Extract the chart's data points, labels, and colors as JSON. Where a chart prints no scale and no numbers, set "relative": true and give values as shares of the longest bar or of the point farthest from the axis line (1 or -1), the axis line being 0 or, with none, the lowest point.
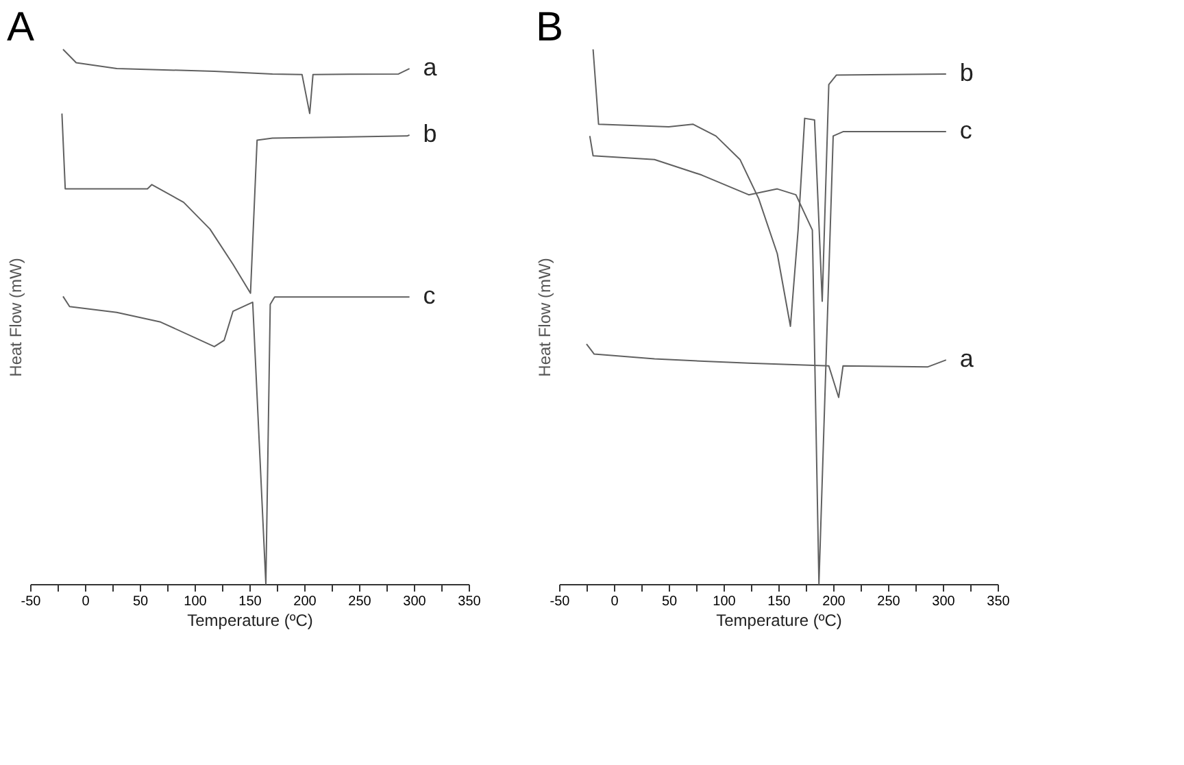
{
  "chart_data": [
    {
      "type": "line",
      "title": "A",
      "xlabel": "Temperature (ºC)",
      "ylabel": "Heat Flow (mW)",
      "relative": true,
      "xlim": [
        -50,
        350
      ],
      "xticks": [
        -50,
        {
          "value": -25,
          "label": null
        },
        0,
        {
          "value": 25,
          "label": null
        },
        50,
        {
          "value": 75,
          "label": null
        },
        100,
        {
          "value": 125,
          "label": null
        },
        150,
        {
          "value": 175,
          "label": null
        },
        200,
        {
          "value": 225,
          "label": null
        },
        250,
        {
          "value": 275,
          "label": null
        },
        300,
        {
          "value": 325,
          "label": null
        },
        350
      ],
      "grid": false,
      "legend": false,
      "marker": "none",
      "line_style": "solid",
      "series": [
        {
          "name": "a",
          "color": "#606060",
          "x": [
            -20,
            -8,
            29,
            118,
            171,
            198,
            205,
            208,
            286,
            296
          ],
          "values": [
            1.0,
            0.975,
            0.964,
            0.959,
            0.954,
            0.953,
            0.88,
            0.953,
            0.954,
            0.964
          ]
        },
        {
          "name": "b",
          "color": "#606060",
          "x": [
            -21,
            -18,
            57,
            61,
            90,
            114,
            135,
            151,
            157,
            171,
            294,
            296
          ],
          "values": [
            0.88,
            0.739,
            0.739,
            0.747,
            0.714,
            0.664,
            0.598,
            0.544,
            0.83,
            0.834,
            0.838,
            0.84
          ]
        },
        {
          "name": "c",
          "color": "#606060",
          "x": [
            -20,
            -14,
            29,
            69,
            118,
            127,
            135,
            153,
            165,
            169,
            173,
            296
          ],
          "values": [
            0.538,
            0.519,
            0.508,
            0.49,
            0.444,
            0.456,
            0.51,
            0.527,
            0.0,
            0.523,
            0.537,
            0.537
          ]
        }
      ]
    },
    {
      "type": "line",
      "title": "B",
      "xlabel": "Temperature (ºC)",
      "ylabel": "Heat Flow (mW)",
      "relative": true,
      "xlim": [
        -50,
        350
      ],
      "xticks": [
        -50,
        {
          "value": -25,
          "label": null
        },
        0,
        {
          "value": 25,
          "label": null
        },
        50,
        {
          "value": 75,
          "label": null
        },
        100,
        {
          "value": 125,
          "label": null
        },
        150,
        {
          "value": 175,
          "label": null
        },
        200,
        {
          "value": 225,
          "label": null
        },
        250,
        {
          "value": 275,
          "label": null
        },
        300,
        {
          "value": 325,
          "label": null
        },
        350
      ],
      "grid": false,
      "legend": false,
      "marker": "none",
      "line_style": "solid",
      "series": [
        {
          "name": "b",
          "color": "#606060",
          "x": [
            -19,
            -14,
            50,
            72,
            93,
            115,
            132,
            149,
            161,
            168,
            174,
            183,
            190,
            196,
            203,
            303
          ],
          "values": [
            1.0,
            0.86,
            0.855,
            0.86,
            0.838,
            0.794,
            0.721,
            0.618,
            0.482,
            0.662,
            0.871,
            0.868,
            0.529,
            0.934,
            0.952,
            0.954
          ]
        },
        {
          "name": "c",
          "color": "#606060",
          "x": [
            -22,
            -19,
            37,
            80,
            123,
            149,
            166,
            181,
            187,
            200,
            209,
            303
          ],
          "values": [
            0.838,
            0.801,
            0.794,
            0.765,
            0.728,
            0.739,
            0.728,
            0.662,
            0.0,
            0.838,
            0.846,
            0.846
          ]
        },
        {
          "name": "a",
          "color": "#606060",
          "x": [
            -25,
            -18,
            37,
            123,
            196,
            205,
            209,
            286,
            303
          ],
          "values": [
            0.449,
            0.43,
            0.421,
            0.413,
            0.408,
            0.349,
            0.408,
            0.406,
            0.419
          ]
        }
      ]
    }
  ]
}
